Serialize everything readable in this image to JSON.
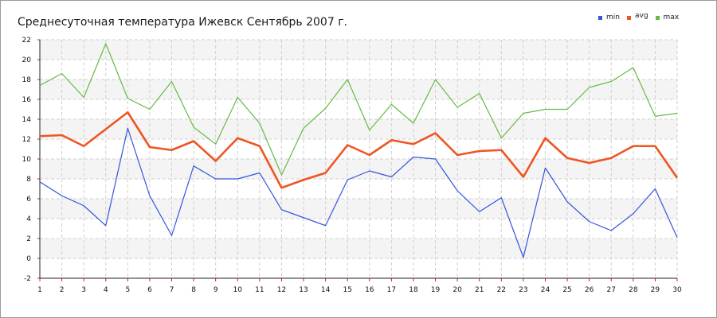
{
  "chart_data": {
    "type": "line",
    "title": "Среднесуточная температура Ижевск  Сентябрь 2007 г.",
    "xlabel": "",
    "ylabel": "",
    "x": [
      1,
      2,
      3,
      4,
      5,
      6,
      7,
      8,
      9,
      10,
      11,
      12,
      13,
      14,
      15,
      16,
      17,
      18,
      19,
      20,
      21,
      22,
      23,
      24,
      25,
      26,
      27,
      28,
      29,
      30
    ],
    "ylim": [
      -2,
      22
    ],
    "yticks": [
      -2,
      0,
      2,
      4,
      6,
      8,
      10,
      12,
      14,
      16,
      18,
      20,
      22
    ],
    "grid": true,
    "legend_position": "top-right",
    "series": [
      {
        "name": "min",
        "color": "#3355dd",
        "values": [
          7.7,
          6.3,
          5.3,
          3.3,
          13.1,
          6.3,
          2.3,
          9.3,
          8.0,
          8.0,
          8.6,
          4.9,
          4.1,
          3.3,
          7.9,
          8.8,
          8.2,
          10.2,
          10.0,
          6.8,
          4.7,
          6.1,
          0.1,
          9.1,
          5.7,
          3.7,
          2.8,
          4.5,
          7.0,
          2.1
        ]
      },
      {
        "name": "avg",
        "color": "#ee5522",
        "values": [
          12.3,
          12.4,
          11.3,
          13.0,
          14.7,
          11.2,
          10.9,
          11.8,
          9.8,
          12.1,
          11.3,
          7.1,
          7.9,
          8.6,
          11.4,
          10.4,
          11.9,
          11.5,
          12.6,
          10.4,
          10.8,
          10.9,
          8.2,
          12.1,
          10.1,
          9.6,
          10.1,
          11.3,
          11.3,
          8.1
        ]
      },
      {
        "name": "max",
        "color": "#66bb44",
        "values": [
          17.4,
          18.6,
          16.2,
          21.6,
          16.1,
          15.0,
          17.8,
          13.2,
          11.5,
          16.2,
          13.6,
          8.4,
          13.1,
          15.1,
          18.0,
          12.9,
          15.5,
          13.6,
          18.0,
          15.2,
          16.6,
          12.1,
          14.6,
          15.0,
          15.0,
          17.2,
          17.8,
          19.2,
          14.3,
          14.6
        ]
      }
    ]
  }
}
